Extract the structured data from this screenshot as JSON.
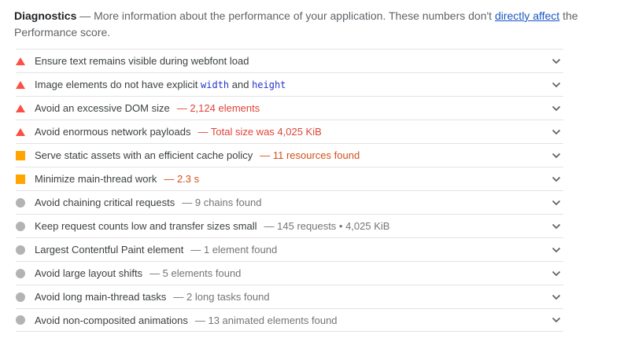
{
  "colors": {
    "fail": "#ff4e42",
    "average": "#ffa400",
    "info": "#b3b3b3",
    "fail-text": "#e04438",
    "average-text": "#d2501a",
    "info-text": "#757575",
    "title-text": "#3c4043",
    "body-text": "#5f6368",
    "link": "#1a56c3",
    "code": "#2536cc",
    "divider": "#e3e3e3",
    "chevron": "#5f6368"
  },
  "header": {
    "title": "Diagnostics",
    "separator": "—",
    "description_before_link": "More information about the performance of your application. These numbers don't",
    "link_text": "directly affect",
    "description_after_link": "the",
    "description_line2": "Performance score."
  },
  "list": {
    "value_separator": "—"
  },
  "audits": [
    {
      "severity": "fail",
      "title": [
        {
          "t": "Ensure text remains visible during webfont load"
        }
      ],
      "value": null
    },
    {
      "severity": "fail",
      "title": [
        {
          "t": "Image elements do not have explicit "
        },
        {
          "t": "width",
          "code": true
        },
        {
          "t": " and "
        },
        {
          "t": "height",
          "code": true
        }
      ],
      "value": null
    },
    {
      "severity": "fail",
      "title": [
        {
          "t": "Avoid an excessive DOM size"
        }
      ],
      "value": "2,124 elements"
    },
    {
      "severity": "fail",
      "title": [
        {
          "t": "Avoid enormous network payloads"
        }
      ],
      "value": "Total size was 4,025 KiB"
    },
    {
      "severity": "average",
      "title": [
        {
          "t": "Serve static assets with an efficient cache policy"
        }
      ],
      "value": "11 resources found"
    },
    {
      "severity": "average",
      "title": [
        {
          "t": "Minimize main-thread work"
        }
      ],
      "value": "2.3 s"
    },
    {
      "severity": "info",
      "title": [
        {
          "t": "Avoid chaining critical requests"
        }
      ],
      "value": "9 chains found"
    },
    {
      "severity": "info",
      "title": [
        {
          "t": "Keep request counts low and transfer sizes small"
        }
      ],
      "value": "145 requests • 4,025 KiB"
    },
    {
      "severity": "info",
      "title": [
        {
          "t": "Largest Contentful Paint element"
        }
      ],
      "value": "1 element found"
    },
    {
      "severity": "info",
      "title": [
        {
          "t": "Avoid large layout shifts"
        }
      ],
      "value": "5 elements found"
    },
    {
      "severity": "info",
      "title": [
        {
          "t": "Avoid long main-thread tasks"
        }
      ],
      "value": "2 long tasks found"
    },
    {
      "severity": "info",
      "title": [
        {
          "t": "Avoid non-composited animations"
        }
      ],
      "value": "13 animated elements found"
    }
  ]
}
